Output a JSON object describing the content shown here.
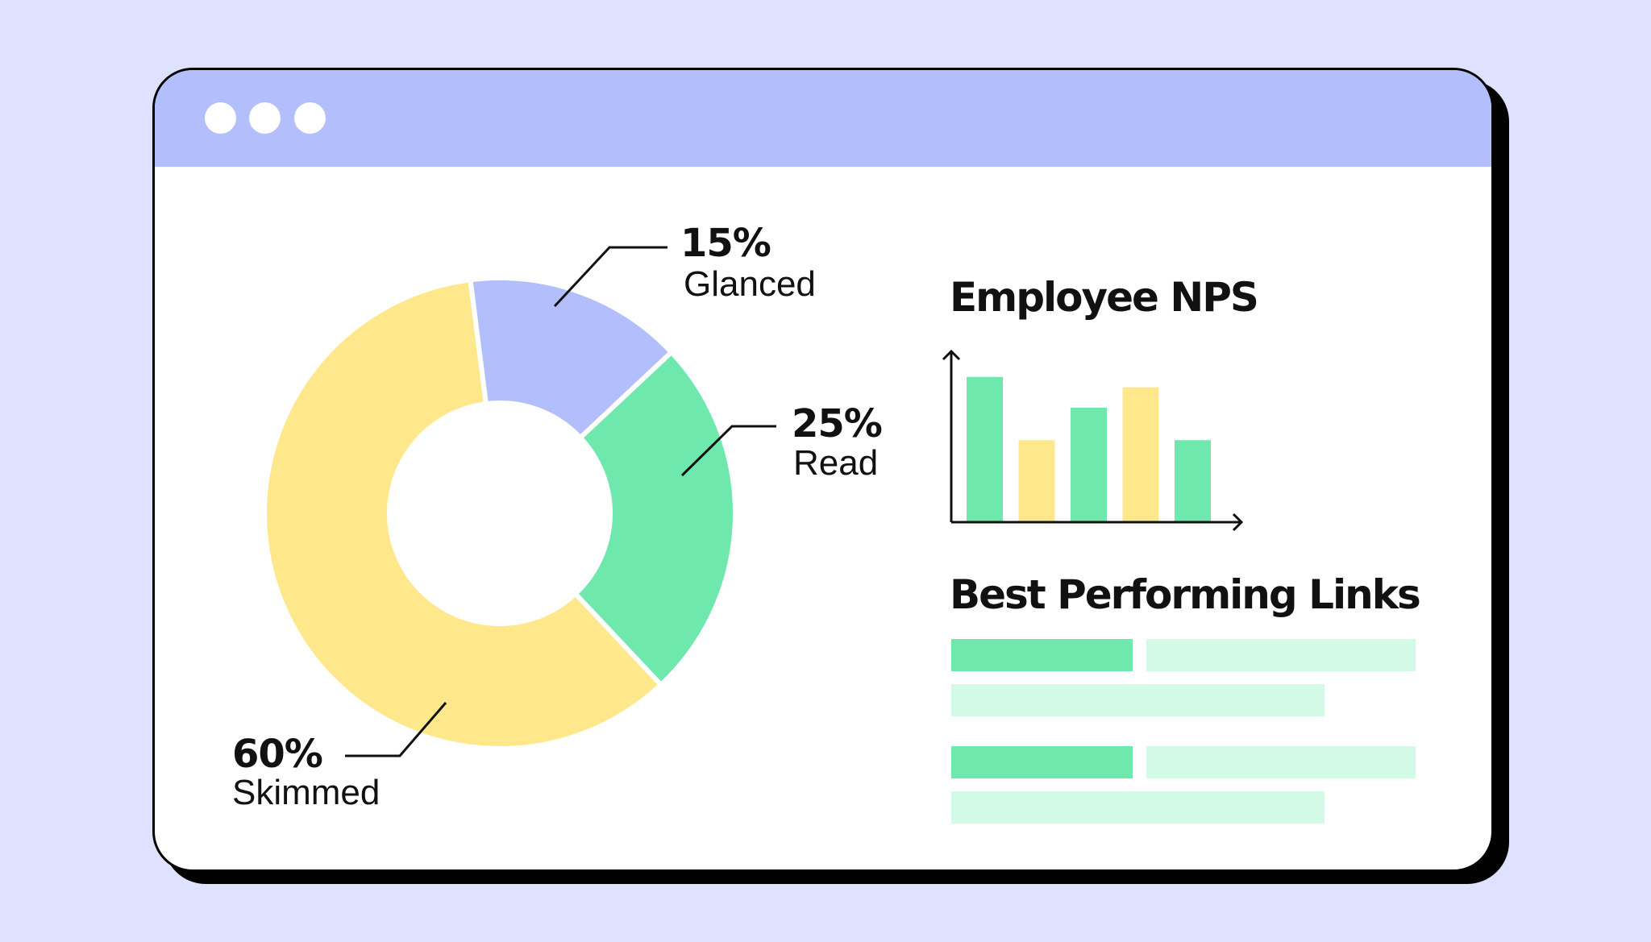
{
  "window": {
    "controls": [
      "window-dot-1",
      "window-dot-2",
      "window-dot-3"
    ]
  },
  "donut": {
    "segments": [
      {
        "percent": "15%",
        "label": "Glanced",
        "value": 15,
        "color": "#b3bffd"
      },
      {
        "percent": "25%",
        "label": "Read",
        "value": 25,
        "color": "#6fe8ad"
      },
      {
        "percent": "60%",
        "label": "Skimmed",
        "value": 60,
        "color": "#ffe88c"
      }
    ]
  },
  "nps": {
    "title": "Employee NPS",
    "colors": {
      "green": "#6fe8ad",
      "yellow": "#ffe88c"
    }
  },
  "links": {
    "title": "Best Performing Links",
    "colors": {
      "dark": "#6fe8ad",
      "light": "#d3f9e7"
    }
  },
  "chart_data": {
    "type": "bar",
    "title": "Employee NPS",
    "values": [
      8.5,
      4.8,
      6.7,
      7.9,
      4.8
    ],
    "bar_colors": [
      "#6fe8ad",
      "#ffe88c",
      "#6fe8ad",
      "#ffe88c",
      "#6fe8ad"
    ],
    "ylim": [
      0,
      10
    ]
  }
}
